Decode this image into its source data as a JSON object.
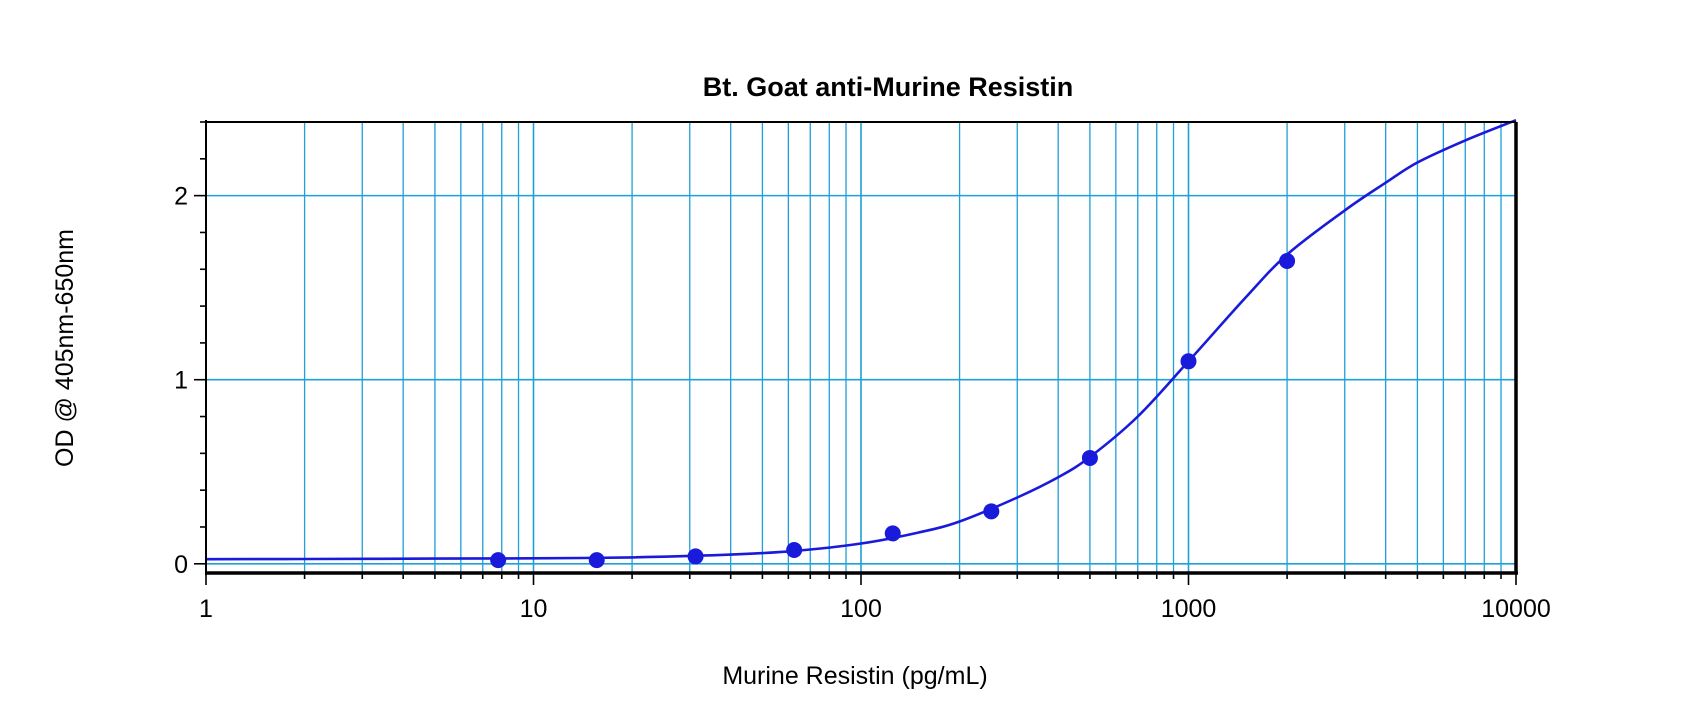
{
  "chart_data": {
    "type": "scatter",
    "title": "Bt. Goat anti-Murine Resistin",
    "xlabel": "Murine Resistin (pg/mL)",
    "ylabel": "OD @ 405nm-650nm",
    "x_scale": "log",
    "xlim": [
      1,
      10000
    ],
    "ylim": [
      -0.05,
      2.4
    ],
    "x_ticks": [
      1,
      10,
      100,
      1000,
      10000
    ],
    "x_tick_labels": [
      "1",
      "10",
      "100",
      "1000",
      "10000"
    ],
    "y_ticks": [
      0,
      1,
      2
    ],
    "y_tick_labels": [
      "0",
      "1",
      "2"
    ],
    "grid": true,
    "colors": {
      "series": "#1a1adb",
      "grid": "#1ea0d8",
      "axis": "#000000"
    },
    "series": [
      {
        "x": [
          7.8,
          15.6,
          31.25,
          62.5,
          125,
          250,
          500,
          1000,
          2000
        ],
        "y": [
          0.02,
          0.02,
          0.04,
          0.075,
          0.165,
          0.285,
          0.575,
          1.1,
          1.645
        ]
      }
    ],
    "fit_curve": {
      "x": [
        1,
        2,
        5,
        10,
        20,
        40,
        62.5,
        100,
        150,
        200,
        300,
        400,
        500,
        700,
        1000,
        1500,
        2000,
        3000,
        4000,
        5000,
        7000,
        10000
      ],
      "y": [
        0.025,
        0.026,
        0.028,
        0.03,
        0.035,
        0.05,
        0.07,
        0.11,
        0.17,
        0.23,
        0.36,
        0.47,
        0.58,
        0.8,
        1.1,
        1.45,
        1.68,
        1.92,
        2.07,
        2.18,
        2.3,
        2.41
      ]
    }
  }
}
